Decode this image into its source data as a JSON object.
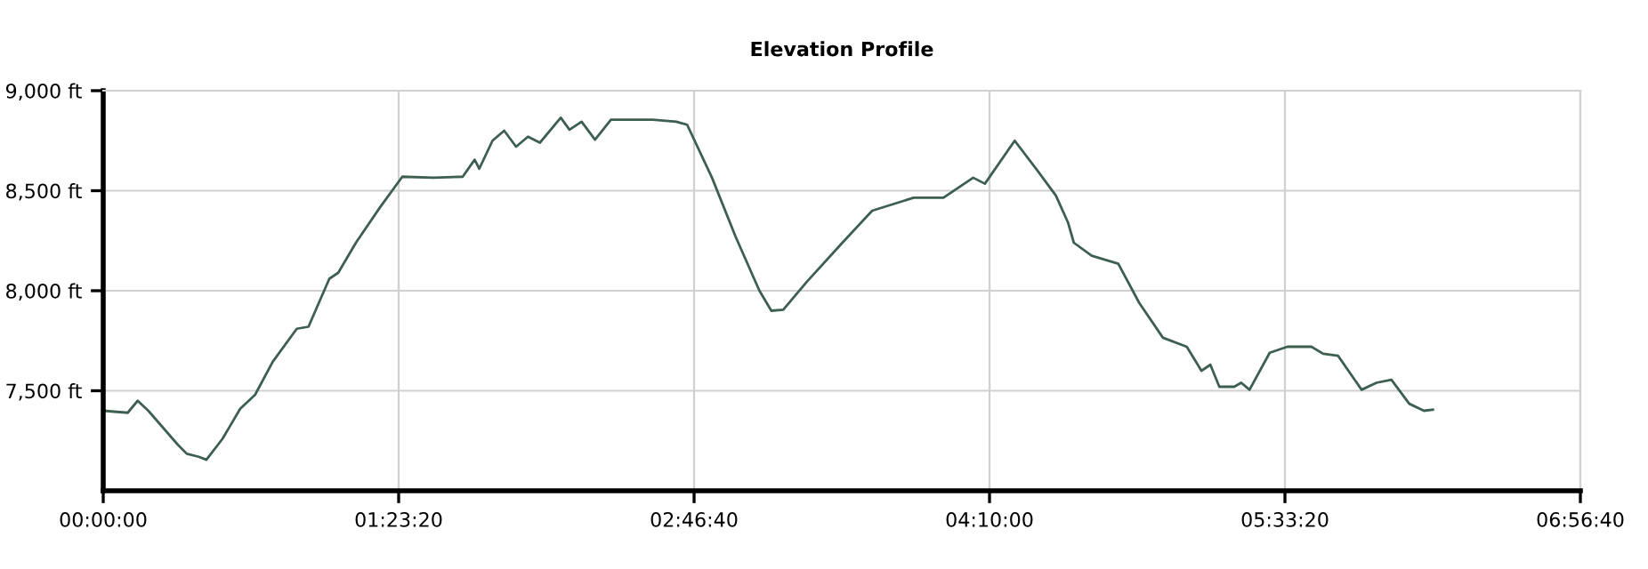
{
  "chart_data": {
    "type": "line",
    "title": "Elevation Profile",
    "series": [
      {
        "color": "#3d5f50",
        "x": [
          0.0,
          0.115,
          0.162,
          0.212,
          0.351,
          0.393,
          0.449,
          0.485,
          0.561,
          0.644,
          0.714,
          0.797,
          0.91,
          0.965,
          1.063,
          1.105,
          1.188,
          1.3,
          1.406,
          1.551,
          1.69,
          1.746,
          1.768,
          1.83,
          1.885,
          1.941,
          1.997,
          2.053,
          2.151,
          2.192,
          2.249,
          2.312,
          2.387,
          2.583,
          2.694,
          2.745,
          2.862,
          2.973,
          3.085,
          3.141,
          3.197,
          3.308,
          3.475,
          3.615,
          3.81,
          3.95,
          4.09,
          4.145,
          4.285,
          4.396,
          4.479,
          4.536,
          4.563,
          4.647,
          4.772,
          4.87,
          4.982,
          5.094,
          5.163,
          5.205,
          5.247,
          5.317,
          5.35,
          5.389,
          5.484,
          5.567,
          5.68,
          5.735,
          5.805,
          5.916,
          5.986,
          6.056,
          6.14,
          6.209,
          6.251
        ],
        "values": [
          7400,
          7390,
          7450,
          7400,
          7230,
          7185,
          7170,
          7155,
          7260,
          7410,
          7480,
          7645,
          7810,
          7820,
          8060,
          8090,
          8240,
          8415,
          8570,
          8565,
          8570,
          8655,
          8610,
          8750,
          8800,
          8720,
          8770,
          8740,
          8865,
          8805,
          8845,
          8755,
          8855,
          8855,
          8845,
          8830,
          8565,
          8270,
          8000,
          7900,
          7905,
          8045,
          8240,
          8400,
          8465,
          8465,
          8565,
          8535,
          8750,
          8595,
          8475,
          8340,
          8240,
          8175,
          8135,
          7940,
          7765,
          7720,
          7600,
          7630,
          7520,
          7520,
          7540,
          7505,
          7690,
          7720,
          7720,
          7685,
          7675,
          7505,
          7540,
          7555,
          7435,
          7400,
          7405
        ]
      }
    ],
    "xlim": [
      0,
      6.9444
    ],
    "xticks": [
      {
        "value": 0,
        "label": "00:00:00"
      },
      {
        "value": 1.3889,
        "label": "01:23:20"
      },
      {
        "value": 2.7778,
        "label": "02:46:40"
      },
      {
        "value": 4.1667,
        "label": "04:10:00"
      },
      {
        "value": 5.5556,
        "label": "05:33:20"
      },
      {
        "value": 6.9444,
        "label": "06:56:40"
      }
    ],
    "ylim": [
      7000,
      9000
    ],
    "yticks": [
      {
        "value": 7500,
        "label": "7,500 ft"
      },
      {
        "value": 8000,
        "label": "8,000 ft"
      },
      {
        "value": 8500,
        "label": "8,500 ft"
      },
      {
        "value": 9000,
        "label": "9,000 ft"
      }
    ],
    "grid": true,
    "marker": "none",
    "line_style": "solid",
    "legend": false
  }
}
